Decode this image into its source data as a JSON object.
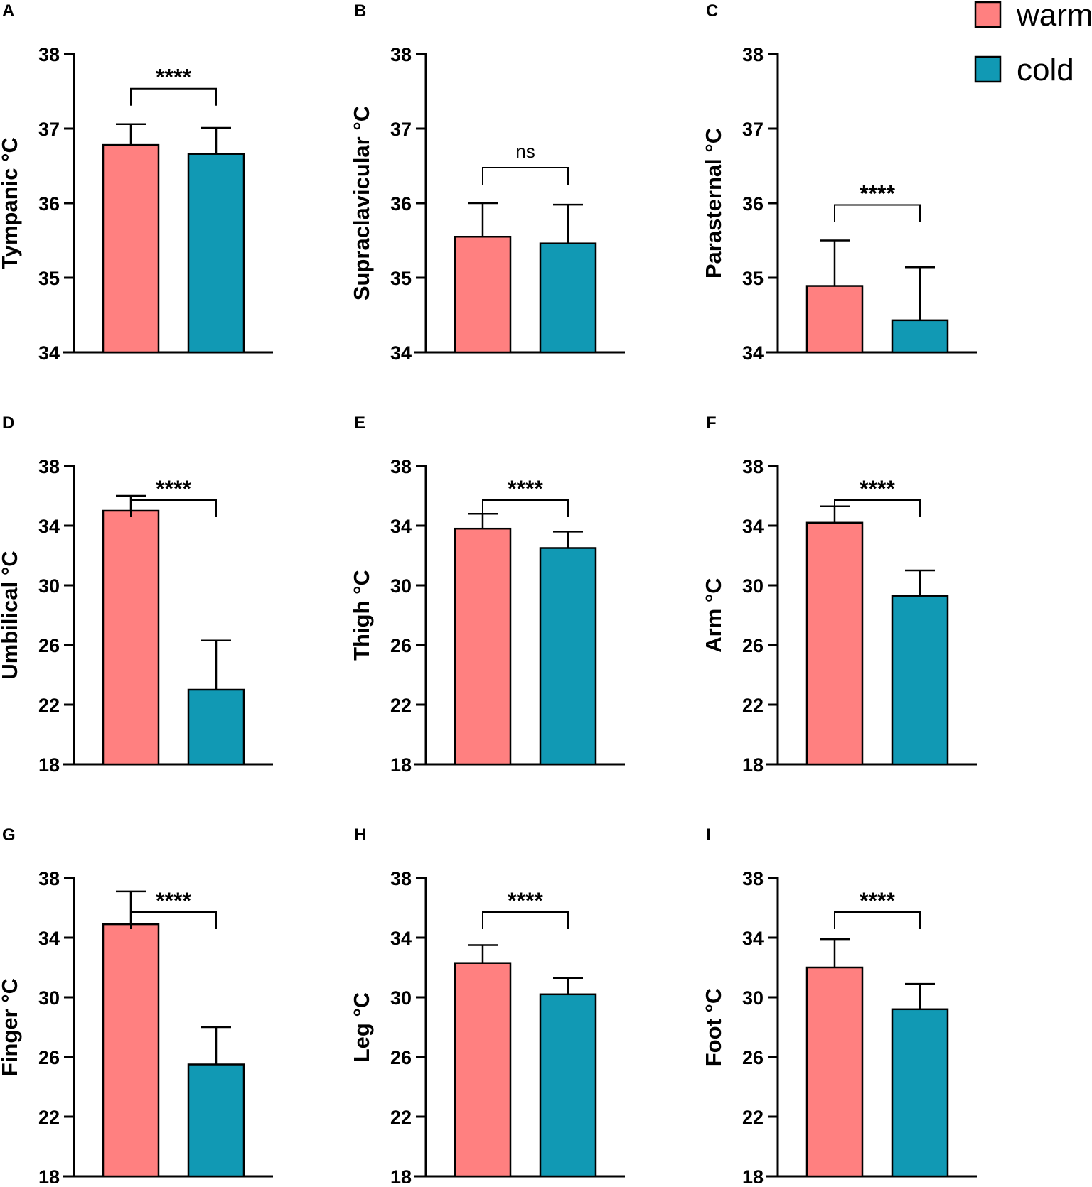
{
  "legend": {
    "items": [
      {
        "label": "warm",
        "color": "#FF8080"
      },
      {
        "label": "cold",
        "color": "#1199B4"
      }
    ]
  },
  "chart_data": [
    {
      "type": "bar",
      "panel": "A",
      "ylabel": "Tympanic °C",
      "ylim": [
        34,
        38
      ],
      "ticks": [
        "34",
        "35",
        "36",
        "37",
        "38"
      ],
      "categories": [
        "warm",
        "cold"
      ],
      "values": [
        36.78,
        36.66
      ],
      "errors": [
        0.28,
        0.35
      ],
      "significance": "****"
    },
    {
      "type": "bar",
      "panel": "B",
      "ylabel": "Supraclavicular °C",
      "ylim": [
        34,
        38
      ],
      "ticks": [
        "34",
        "35",
        "36",
        "37",
        "38"
      ],
      "categories": [
        "warm",
        "cold"
      ],
      "values": [
        35.55,
        35.46
      ],
      "errors": [
        0.45,
        0.52
      ],
      "significance": "ns"
    },
    {
      "type": "bar",
      "panel": "C",
      "ylabel": "Parasternal °C",
      "ylim": [
        34,
        38
      ],
      "ticks": [
        "34",
        "35",
        "36",
        "37",
        "38"
      ],
      "categories": [
        "warm",
        "cold"
      ],
      "values": [
        34.89,
        34.43
      ],
      "errors": [
        0.61,
        0.71
      ],
      "significance": "****"
    },
    {
      "type": "bar",
      "panel": "D",
      "ylabel": "Umbilical °C",
      "ylim": [
        18,
        38
      ],
      "ticks": [
        "18",
        "22",
        "26",
        "30",
        "34",
        "38"
      ],
      "categories": [
        "warm",
        "cold"
      ],
      "values": [
        35.0,
        23.0
      ],
      "errors": [
        1.0,
        3.3
      ],
      "significance": "****"
    },
    {
      "type": "bar",
      "panel": "E",
      "ylabel": "Thigh °C",
      "ylim": [
        18,
        38
      ],
      "ticks": [
        "18",
        "22",
        "26",
        "30",
        "34",
        "38"
      ],
      "categories": [
        "warm",
        "cold"
      ],
      "values": [
        33.8,
        32.5
      ],
      "errors": [
        1.0,
        1.1
      ],
      "significance": "****"
    },
    {
      "type": "bar",
      "panel": "F",
      "ylabel": "Arm °C",
      "ylim": [
        18,
        38
      ],
      "ticks": [
        "18",
        "22",
        "26",
        "30",
        "34",
        "38"
      ],
      "categories": [
        "warm",
        "cold"
      ],
      "values": [
        34.2,
        29.3
      ],
      "errors": [
        1.1,
        1.7
      ],
      "significance": "****"
    },
    {
      "type": "bar",
      "panel": "G",
      "ylabel": "Finger °C",
      "ylim": [
        18,
        38
      ],
      "ticks": [
        "18",
        "22",
        "26",
        "30",
        "34",
        "38"
      ],
      "categories": [
        "warm",
        "cold"
      ],
      "values": [
        34.9,
        25.5
      ],
      "errors": [
        2.2,
        2.5
      ],
      "significance": "****"
    },
    {
      "type": "bar",
      "panel": "H",
      "ylabel": "Leg °C",
      "ylim": [
        18,
        38
      ],
      "ticks": [
        "18",
        "22",
        "26",
        "30",
        "34",
        "38"
      ],
      "categories": [
        "warm",
        "cold"
      ],
      "values": [
        32.3,
        30.2
      ],
      "errors": [
        1.2,
        1.1
      ],
      "significance": "****"
    },
    {
      "type": "bar",
      "panel": "I",
      "ylabel": "Foot °C",
      "ylim": [
        18,
        38
      ],
      "ticks": [
        "18",
        "22",
        "26",
        "30",
        "34",
        "38"
      ],
      "categories": [
        "warm",
        "cold"
      ],
      "values": [
        32.0,
        29.2
      ],
      "errors": [
        1.9,
        1.7
      ],
      "significance": "****"
    }
  ]
}
